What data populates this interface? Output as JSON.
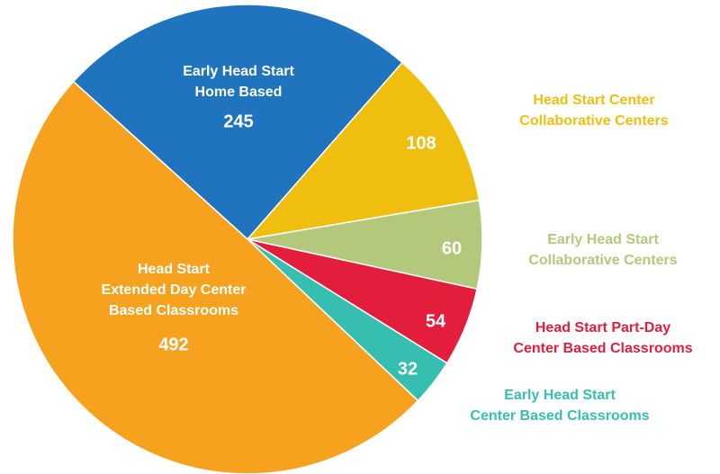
{
  "chart_data": {
    "type": "pie",
    "categories": [
      [
        "Early Head Start",
        "Home Based"
      ],
      [
        "Head Start Center",
        "Collaborative Centers"
      ],
      [
        "Early Head Start",
        "Collaborative Centers"
      ],
      [
        "Head Start Part-Day",
        "Center Based Classrooms"
      ],
      [
        "Early Head Start",
        "Center Based Classrooms"
      ],
      [
        "Head Start",
        "Extended Day Center",
        "Based Classrooms"
      ]
    ],
    "values": [
      245,
      108,
      60,
      54,
      32,
      492
    ],
    "colors": [
      "#1f74bd",
      "#f0be0f",
      "#b3c87a",
      "#e31e3d",
      "#36bfb0",
      "#f7a21e"
    ]
  }
}
